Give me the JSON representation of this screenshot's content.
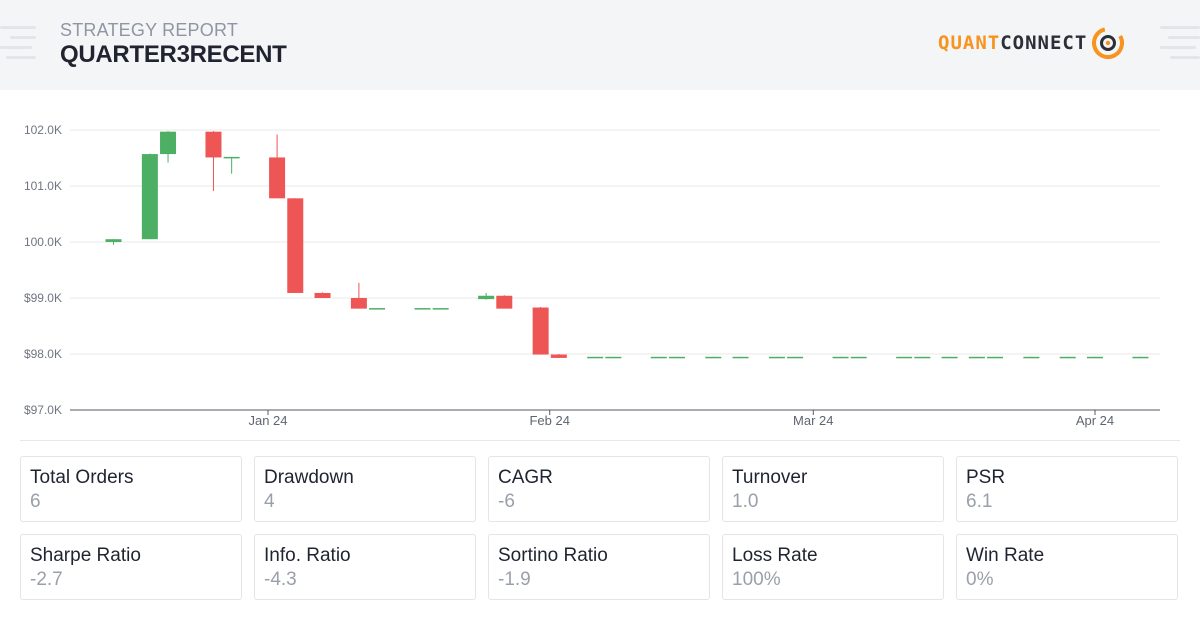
{
  "header": {
    "subtitle": "STRATEGY REPORT",
    "title": "QUARTER3RECENT",
    "logo_left": "QUANT",
    "logo_right": "CONNECT"
  },
  "colors": {
    "up": "#4caf64",
    "down": "#ee5555",
    "accent": "#f7931e",
    "grid": "#e8e8e8"
  },
  "chart_data": {
    "type": "candlestick",
    "title": "",
    "xlabel": "",
    "ylabel": "",
    "ylim": [
      97000,
      102000
    ],
    "yticks": [
      97000,
      98000,
      99000,
      100000,
      101000,
      102000
    ],
    "ytick_labels": [
      "$97.0K",
      "$98.0K",
      "$99.0K",
      "100.0K",
      "101.0K",
      "102.0K"
    ],
    "xticks": [
      {
        "date": "2024-01-01",
        "label": "Jan 24"
      },
      {
        "date": "2024-02-01",
        "label": "Feb 24"
      },
      {
        "date": "2024-03-01",
        "label": "Mar 24"
      },
      {
        "date": "2024-04-01",
        "label": "Apr 24"
      }
    ],
    "grid": true,
    "candles": [
      {
        "date": "2023-12-15",
        "open": 100000,
        "high": 100050,
        "low": 99950,
        "close": 100050
      },
      {
        "date": "2023-12-19",
        "open": 100050,
        "high": 101580,
        "low": 100050,
        "close": 101570
      },
      {
        "date": "2023-12-21",
        "open": 101570,
        "high": 101980,
        "low": 101420,
        "close": 101970
      },
      {
        "date": "2023-12-26",
        "open": 101970,
        "high": 101980,
        "low": 100910,
        "close": 101510
      },
      {
        "date": "2023-12-28",
        "open": 101510,
        "high": 101520,
        "low": 101220,
        "close": 101520
      },
      {
        "date": "2024-01-02",
        "open": 101510,
        "high": 101920,
        "low": 100780,
        "close": 100780
      },
      {
        "date": "2024-01-04",
        "open": 100780,
        "high": 100780,
        "low": 99090,
        "close": 99090
      },
      {
        "date": "2024-01-07",
        "open": 99090,
        "high": 99100,
        "low": 99000,
        "close": 99000
      },
      {
        "date": "2024-01-11",
        "open": 99000,
        "high": 99270,
        "low": 98810,
        "close": 98810
      },
      {
        "date": "2024-01-13",
        "open": 98810,
        "high": 98820,
        "low": 98810,
        "close": 98820
      },
      {
        "date": "2024-01-18",
        "open": 98810,
        "high": 98820,
        "low": 98810,
        "close": 98820
      },
      {
        "date": "2024-01-20",
        "open": 98810,
        "high": 98820,
        "low": 98810,
        "close": 98820
      },
      {
        "date": "2024-01-25",
        "open": 98980,
        "high": 99090,
        "low": 98970,
        "close": 99040
      },
      {
        "date": "2024-01-27",
        "open": 99040,
        "high": 99050,
        "low": 98810,
        "close": 98810
      },
      {
        "date": "2024-01-31",
        "open": 98830,
        "high": 98840,
        "low": 97990,
        "close": 97990
      },
      {
        "date": "2024-02-02",
        "open": 97990,
        "high": 98000,
        "low": 97930,
        "close": 97930
      },
      {
        "date": "2024-02-06",
        "open": 97940,
        "high": 97950,
        "low": 97940,
        "close": 97950
      },
      {
        "date": "2024-02-08",
        "open": 97940,
        "high": 97950,
        "low": 97940,
        "close": 97950
      },
      {
        "date": "2024-02-13",
        "open": 97940,
        "high": 97950,
        "low": 97940,
        "close": 97950
      },
      {
        "date": "2024-02-15",
        "open": 97940,
        "high": 97950,
        "low": 97940,
        "close": 97950
      },
      {
        "date": "2024-02-19",
        "open": 97940,
        "high": 97950,
        "low": 97940,
        "close": 97950
      },
      {
        "date": "2024-02-22",
        "open": 97940,
        "high": 97950,
        "low": 97940,
        "close": 97950
      },
      {
        "date": "2024-02-26",
        "open": 97940,
        "high": 97950,
        "low": 97940,
        "close": 97950
      },
      {
        "date": "2024-02-28",
        "open": 97940,
        "high": 97950,
        "low": 97940,
        "close": 97950
      },
      {
        "date": "2024-03-04",
        "open": 97940,
        "high": 97950,
        "low": 97940,
        "close": 97950
      },
      {
        "date": "2024-03-06",
        "open": 97940,
        "high": 97950,
        "low": 97940,
        "close": 97950
      },
      {
        "date": "2024-03-11",
        "open": 97940,
        "high": 97950,
        "low": 97940,
        "close": 97950
      },
      {
        "date": "2024-03-13",
        "open": 97940,
        "high": 97950,
        "low": 97940,
        "close": 97950
      },
      {
        "date": "2024-03-16",
        "open": 97940,
        "high": 97950,
        "low": 97940,
        "close": 97950
      },
      {
        "date": "2024-03-19",
        "open": 97940,
        "high": 97950,
        "low": 97940,
        "close": 97950
      },
      {
        "date": "2024-03-21",
        "open": 97940,
        "high": 97950,
        "low": 97940,
        "close": 97950
      },
      {
        "date": "2024-03-25",
        "open": 97940,
        "high": 97950,
        "low": 97940,
        "close": 97950
      },
      {
        "date": "2024-03-29",
        "open": 97940,
        "high": 97950,
        "low": 97940,
        "close": 97950
      },
      {
        "date": "2024-04-01",
        "open": 97940,
        "high": 97950,
        "low": 97940,
        "close": 97950
      },
      {
        "date": "2024-04-06",
        "open": 97940,
        "high": 97950,
        "low": 97940,
        "close": 97950
      }
    ]
  },
  "stats": [
    {
      "label": "Total Orders",
      "value": "6"
    },
    {
      "label": "Drawdown",
      "value": "4"
    },
    {
      "label": "CAGR",
      "value": "-6"
    },
    {
      "label": "Turnover",
      "value": "1.0"
    },
    {
      "label": "PSR",
      "value": "6.1"
    },
    {
      "label": "Sharpe Ratio",
      "value": "-2.7"
    },
    {
      "label": "Info. Ratio",
      "value": "-4.3"
    },
    {
      "label": "Sortino Ratio",
      "value": "-1.9"
    },
    {
      "label": "Loss Rate",
      "value": "100%"
    },
    {
      "label": "Win Rate",
      "value": "0%"
    }
  ]
}
